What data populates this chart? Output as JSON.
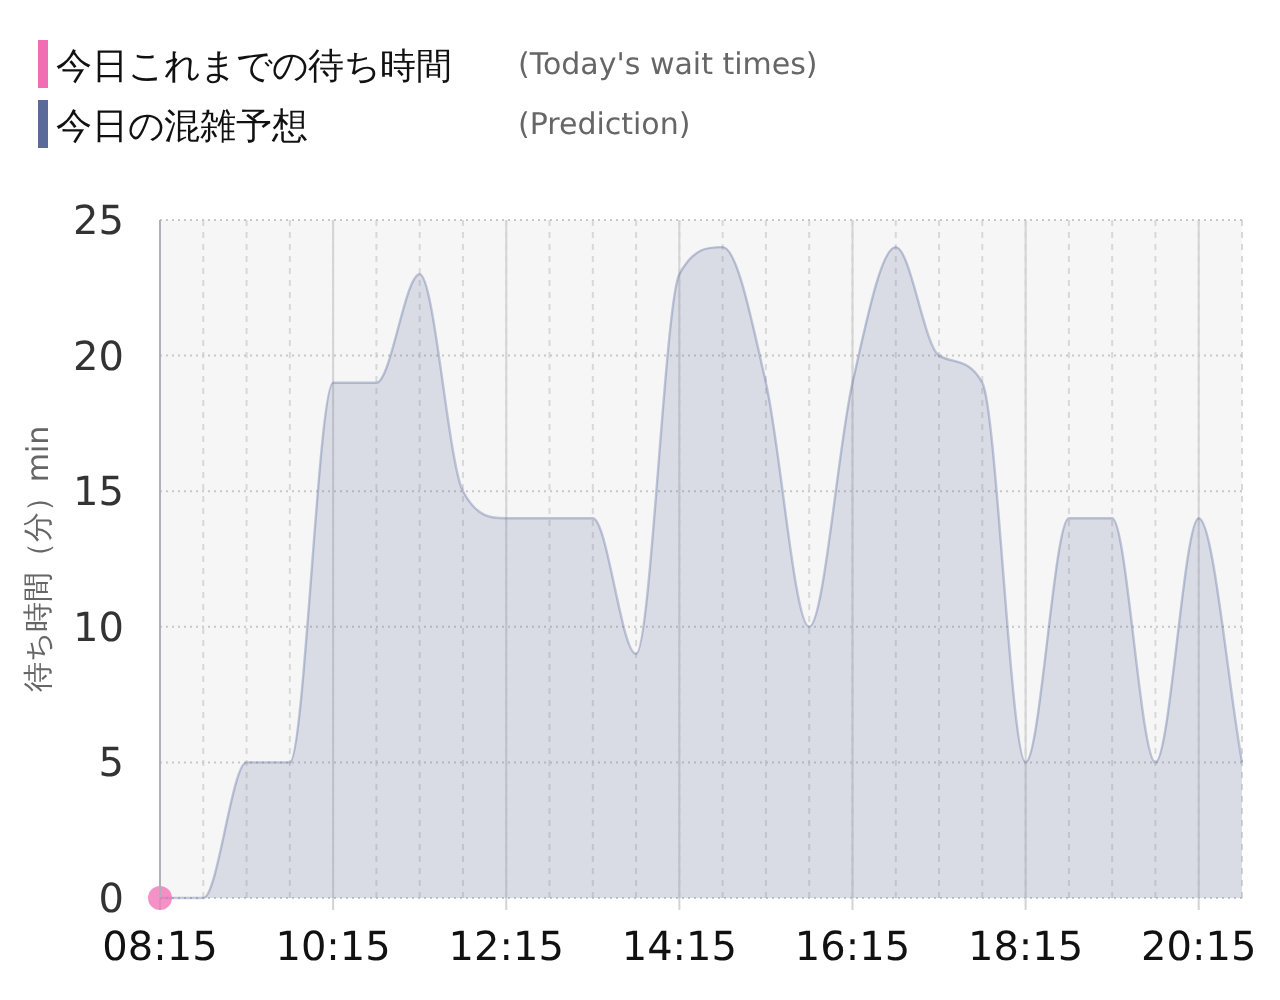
{
  "chart_data": {
    "type": "area",
    "ylabel": "待ち時間（分）min",
    "xlim": [
      8.25,
      20.75
    ],
    "xticks": [
      {
        "value": 8.25,
        "label": "08:15"
      },
      {
        "value": 10.25,
        "label": "10:15"
      },
      {
        "value": 12.25,
        "label": "12:15"
      },
      {
        "value": 14.25,
        "label": "14:15"
      },
      {
        "value": 16.25,
        "label": "16:15"
      },
      {
        "value": 18.25,
        "label": "18:15"
      },
      {
        "value": 20.25,
        "label": "20:15"
      }
    ],
    "ylim": [
      0,
      25
    ],
    "yticks": [
      0,
      5,
      10,
      15,
      20,
      25
    ],
    "grid": true,
    "legend": "top left",
    "annotations": [
      "(Today's wait times)",
      "(Prediction)"
    ],
    "series": [
      {
        "name": "今日これまでの待ち時間",
        "type": "scatter",
        "marker": "circle",
        "color": "#f06eb4",
        "x": [
          8.25
        ],
        "values": [
          0
        ]
      },
      {
        "name": "今日の混雑予想",
        "color": "#5a6b9a",
        "x": [
          8.25,
          8.75,
          9.25,
          9.75,
          10.25,
          10.75,
          11.25,
          11.75,
          12.25,
          12.75,
          13.25,
          13.75,
          14.25,
          14.75,
          15.25,
          15.75,
          16.25,
          16.75,
          17.25,
          17.75,
          18.25,
          18.75,
          19.25,
          19.75,
          20.25,
          20.75
        ],
        "values": [
          0,
          0,
          5,
          5,
          19,
          19,
          23,
          15,
          14,
          14,
          14,
          9,
          23,
          24,
          19,
          10,
          19,
          24,
          20,
          19,
          5,
          14,
          14,
          5,
          14,
          5
        ]
      }
    ]
  }
}
